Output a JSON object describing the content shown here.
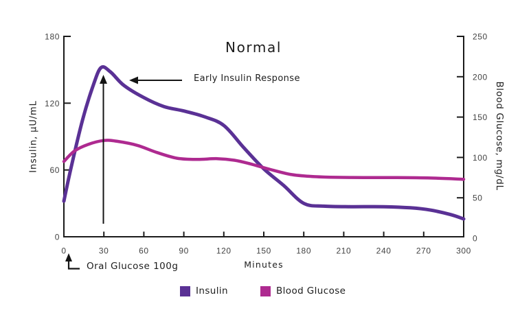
{
  "annotations": {
    "early_insulin_response": "Early Insulin Response",
    "oral_glucose": "Oral Glucose 100g"
  },
  "chart_data": {
    "type": "line",
    "title": "Normal",
    "x_axis": {
      "label": "Minutes",
      "lim": [
        0,
        300
      ],
      "ticks": [
        0,
        30,
        60,
        90,
        120,
        150,
        180,
        210,
        240,
        270,
        300
      ]
    },
    "left_axis": {
      "label": "Insulin, μU/mL",
      "lim": [
        0,
        180
      ],
      "ticks": [
        0,
        60,
        120,
        180
      ]
    },
    "right_axis": {
      "label": "Blood Glucose, mg/dL",
      "lim": [
        0,
        250
      ],
      "ticks": [
        0,
        50,
        100,
        150,
        200,
        250
      ]
    },
    "grid": false,
    "legend_position": "bottom",
    "series": [
      {
        "name": "Insulin",
        "axis": "left",
        "unit": "μU/mL",
        "color": "#5a3195",
        "x": [
          0,
          5,
          14,
          22,
          28,
          35,
          45,
          60,
          75,
          90,
          105,
          120,
          135,
          150,
          165,
          180,
          195,
          215,
          240,
          260,
          275,
          290,
          300
        ],
        "values": [
          32,
          60,
          105,
          136,
          152,
          148,
          136,
          125,
          117,
          113,
          108,
          100,
          80,
          61,
          46,
          30,
          27.5,
          27,
          27,
          26,
          24,
          20,
          16
        ]
      },
      {
        "name": "Blood Glucose",
        "axis": "right",
        "unit": "mg/dL",
        "color": "#ae2a90",
        "x": [
          0,
          8,
          18,
          30,
          40,
          55,
          70,
          85,
          100,
          115,
          128,
          140,
          155,
          170,
          185,
          200,
          225,
          250,
          275,
          300
        ],
        "values": [
          95,
          108,
          116,
          121,
          120,
          115,
          106,
          99,
          97.5,
          98.5,
          96.5,
          92,
          85,
          79,
          76.5,
          75.5,
          75,
          75,
          74.5,
          73
        ]
      }
    ]
  }
}
